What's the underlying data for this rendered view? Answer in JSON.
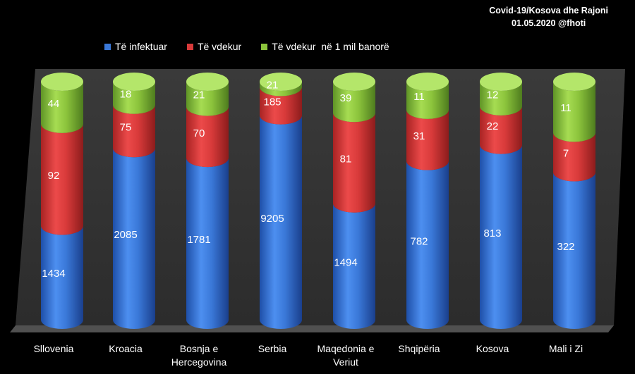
{
  "chart_data": {
    "type": "bar",
    "stacked": true,
    "title": "Covid-19/Kosova dhe Rajoni",
    "subtitle": "01.05.2020 @fhoti",
    "categories": [
      "Sllovenia",
      "Kroacia",
      "Bosnja e Hercegovina",
      "Serbia",
      "Maqedonia e Veriut",
      "Shqipëria",
      "Kosova",
      "Mali i Zi"
    ],
    "category_lines": [
      [
        "Sllovenia"
      ],
      [
        "Kroacia"
      ],
      [
        "Bosnja e",
        "Hercegovina"
      ],
      [
        "Serbia"
      ],
      [
        "Maqedonia e",
        "Veriut"
      ],
      [
        "Shqipëria"
      ],
      [
        "Kosova"
      ],
      [
        "Mali i Zi"
      ]
    ],
    "series": [
      {
        "name": "Të infektuar",
        "color": "#3a78d8",
        "values": [
          1434,
          2085,
          1781,
          9205,
          1494,
          782,
          813,
          322
        ]
      },
      {
        "name": "Të vdekur",
        "color": "#d83a3a",
        "values": [
          92,
          75,
          70,
          185,
          81,
          31,
          22,
          7
        ]
      },
      {
        "name": "Të vdekur  në 1 mil banorë",
        "color": "#8cc43c",
        "values": [
          44,
          18,
          21,
          21,
          39,
          11,
          12,
          11
        ]
      }
    ],
    "segment_fractions": [
      [
        0.395,
        0.428,
        0.177
      ],
      [
        0.721,
        0.182,
        0.097
      ],
      [
        0.68,
        0.215,
        0.105
      ],
      [
        0.859,
        0.119,
        0.022
      ],
      [
        0.489,
        0.38,
        0.131
      ],
      [
        0.667,
        0.215,
        0.118
      ],
      [
        0.735,
        0.162,
        0.103
      ],
      [
        0.62,
        0.166,
        0.214
      ]
    ],
    "legend_position": "top",
    "grid": false
  }
}
